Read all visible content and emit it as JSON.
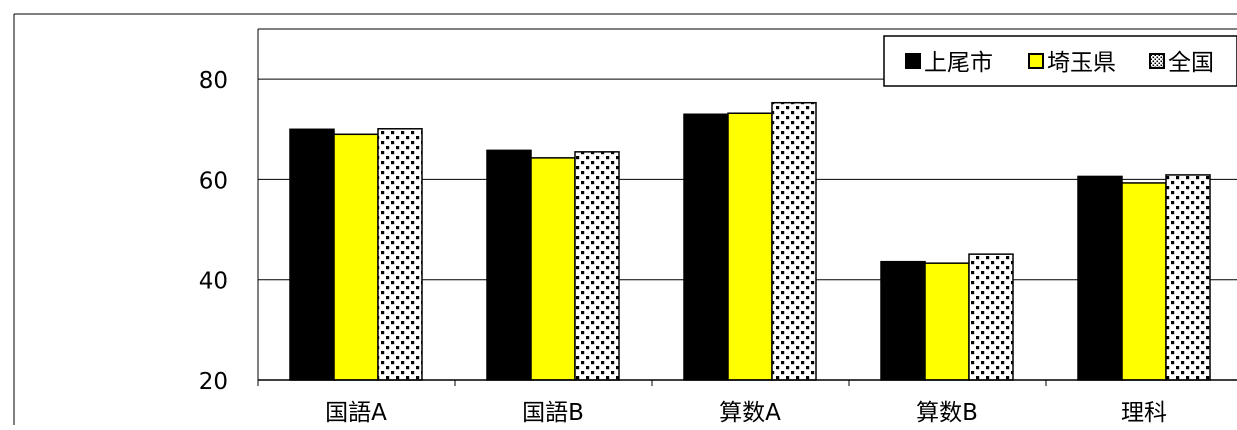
{
  "chart_data": {
    "type": "bar",
    "categories": [
      "国語A",
      "国語B",
      "算数A",
      "算数B",
      "理科"
    ],
    "series": [
      {
        "name": "上尾市",
        "values": [
          70.0,
          65.8,
          73.0,
          43.6,
          60.6
        ],
        "color": "#000000",
        "pattern": "solid"
      },
      {
        "name": "埼玉県",
        "values": [
          69.0,
          64.3,
          73.2,
          43.3,
          59.3
        ],
        "color": "#ffff00",
        "pattern": "solid"
      },
      {
        "name": "全国",
        "values": [
          70.1,
          65.5,
          75.3,
          45.1,
          60.9
        ],
        "color": "#ffffff",
        "pattern": "checker"
      }
    ],
    "yticks": [
      20,
      40,
      60,
      80
    ],
    "ylim": [
      20,
      90
    ],
    "grid": true,
    "legend": "top-right"
  }
}
